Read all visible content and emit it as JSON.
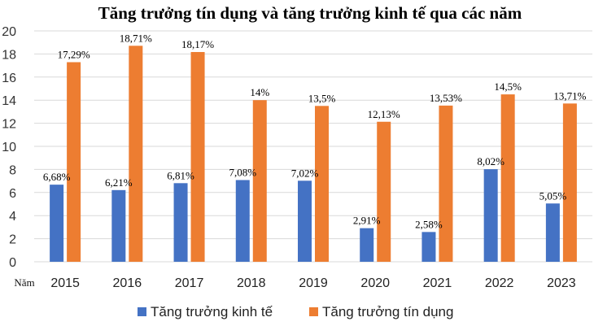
{
  "chart_data": {
    "type": "bar",
    "title": "Tăng trưởng tín dụng và tăng trưởng kinh tế qua các năm",
    "xlabel": "Năm",
    "ylabel": "",
    "ylim": [
      0,
      20
    ],
    "yticks": [
      0,
      2,
      4,
      6,
      8,
      10,
      12,
      14,
      16,
      18,
      20
    ],
    "grid": true,
    "legend_position": "bottom",
    "categories": [
      "2015",
      "2016",
      "2017",
      "2018",
      "2019",
      "2020",
      "2021",
      "2022",
      "2023"
    ],
    "series": [
      {
        "name": "Tăng trưởng kinh tế",
        "color": "#4472C4",
        "values": [
          6.68,
          6.21,
          6.81,
          7.08,
          7.02,
          2.91,
          2.58,
          8.02,
          5.05
        ],
        "labels": [
          "6,68%",
          "6,21%",
          "6,81%",
          "7,08%",
          "7,02%",
          "2,91%",
          "2,58%",
          "8,02%",
          "5,05%"
        ]
      },
      {
        "name": "Tăng trưởng tín dụng",
        "color": "#ED7D31",
        "values": [
          17.29,
          18.71,
          18.17,
          14,
          13.5,
          12.13,
          13.53,
          14.5,
          13.71
        ],
        "labels": [
          "17,29%",
          "18,71%",
          "18,17%",
          "14%",
          "13,5%",
          "12,13%",
          "13,53%",
          "14,5%",
          "13,71%"
        ]
      }
    ]
  }
}
